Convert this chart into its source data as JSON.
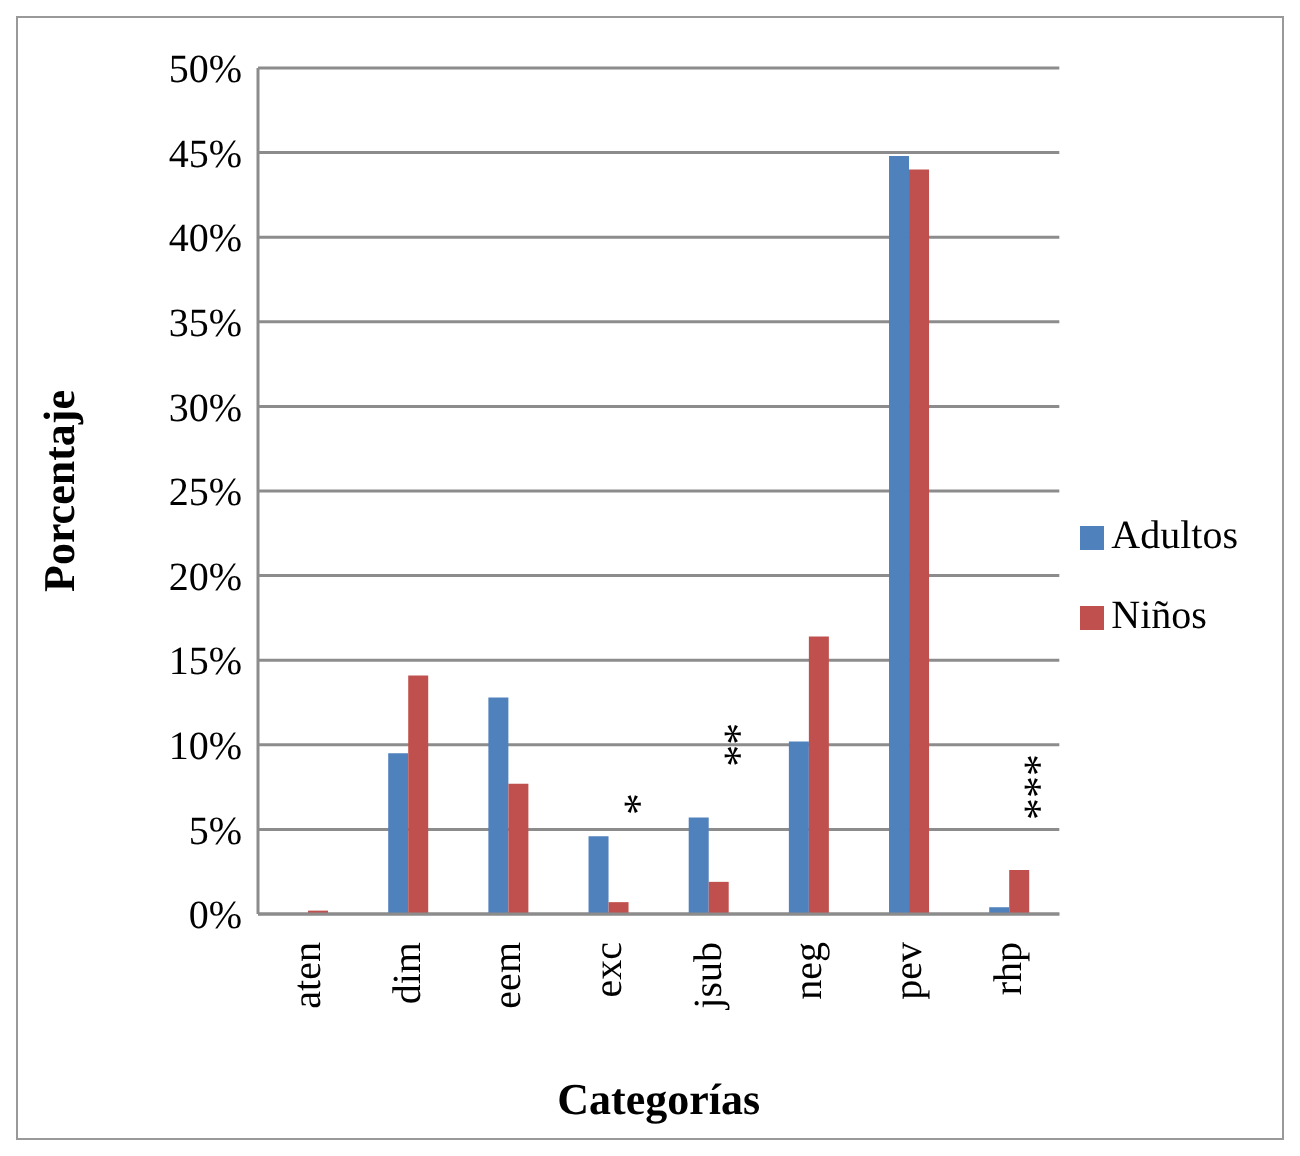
{
  "chart_data": {
    "type": "bar",
    "xlabel": "Categorías",
    "ylabel": "Porcentaje",
    "categories": [
      "aten",
      "dim",
      "eem",
      "exc",
      "jsub",
      "neg",
      "pev",
      "rhp"
    ],
    "series": [
      {
        "name": "Adultos",
        "color": "#4f81bd",
        "values": [
          0,
          9.5,
          12.8,
          4.6,
          5.7,
          10.2,
          44.8,
          0.4
        ]
      },
      {
        "name": "Niños",
        "color": "#c0504d",
        "values": [
          0.2,
          14.1,
          7.7,
          0.7,
          1.9,
          16.4,
          44.0,
          2.6
        ]
      }
    ],
    "ylim": [
      0,
      50
    ],
    "yticks": [
      {
        "value": 0,
        "label": "0%"
      },
      {
        "value": 5,
        "label": "5%"
      },
      {
        "value": 10,
        "label": "10%"
      },
      {
        "value": 15,
        "label": "15%"
      },
      {
        "value": 20,
        "label": "20%"
      },
      {
        "value": 25,
        "label": "25%"
      },
      {
        "value": 30,
        "label": "30%"
      },
      {
        "value": 35,
        "label": "35%"
      },
      {
        "value": 40,
        "label": "40%"
      },
      {
        "value": 45,
        "label": "45%"
      },
      {
        "value": 50,
        "label": "50%"
      }
    ],
    "grid": "y",
    "legend": "right",
    "annotations": [
      "*",
      "**",
      "***"
    ]
  }
}
